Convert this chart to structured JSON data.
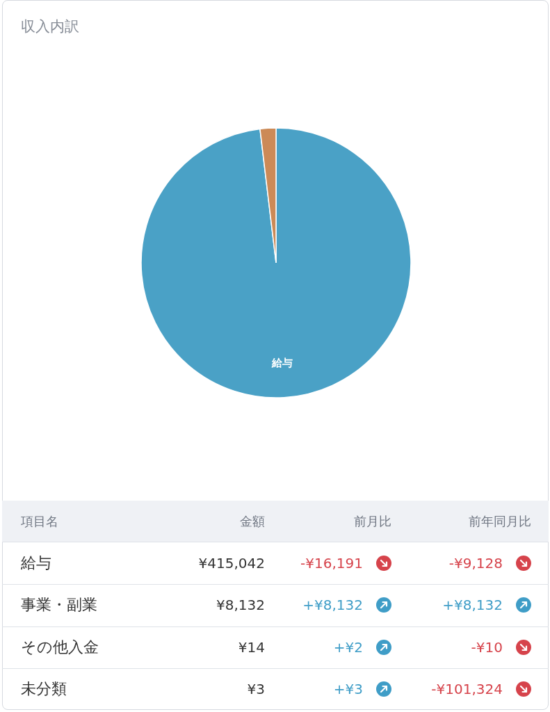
{
  "chart_data": [
    {
      "type": "pie",
      "title": "収入内訳",
      "categories": [
        "給与",
        null
      ],
      "values": [
        98.1,
        1.9
      ],
      "colors": [
        "#4aa1c6",
        "#cc8a57"
      ]
    },
    {
      "type": "other",
      "ylabel": "項目名",
      "categories": [
        "給与",
        "事業・副業",
        "その他入金",
        "未分類"
      ],
      "series": [
        {
          "name": "金額",
          "values": [
            415042,
            8132,
            14,
            3
          ],
          "value_labels": [
            "¥415,042",
            "¥8,132",
            "¥14",
            "¥3"
          ]
        },
        {
          "name": "前月比",
          "colors": [
            "#d6434b",
            "#3f9dc7",
            "#3f9dc7",
            "#3f9dc7"
          ],
          "values": [
            -16191,
            8132,
            2,
            3
          ],
          "value_labels": [
            "-¥16,191",
            "+¥8,132",
            "+¥2",
            "+¥3"
          ]
        },
        {
          "name": "前年同月比",
          "colors": [
            "#d6434b",
            "#3f9dc7",
            "#d6434b",
            "#d6434b"
          ],
          "values": [
            -9128,
            8132,
            -10,
            -101324
          ],
          "value_labels": [
            "-¥9,128",
            "+¥8,132",
            "-¥10",
            "-¥101,324"
          ]
        }
      ]
    }
  ]
}
